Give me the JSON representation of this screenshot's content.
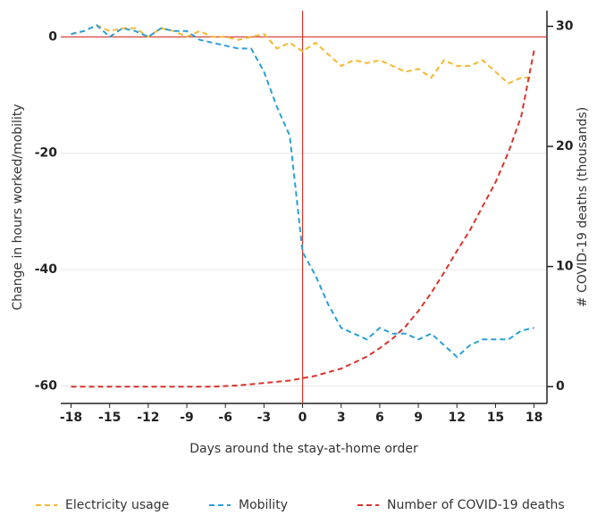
{
  "chart_data": {
    "type": "line",
    "x_label": "Days around the stay-at-home order",
    "y_label": "Change in hours worked/mobility",
    "y2_label": "# COVID-19 deaths (thousands)",
    "x": [
      -18,
      -17,
      -16,
      -15,
      -14,
      -13,
      -12,
      -11,
      -10,
      -9,
      -8,
      -7,
      -6,
      -5,
      -4,
      -3,
      -2,
      -1,
      0,
      1,
      2,
      3,
      4,
      5,
      6,
      7,
      8,
      9,
      10,
      11,
      12,
      13,
      14,
      15,
      16,
      17,
      18
    ],
    "series": [
      {
        "name": "Electricity usage",
        "color": "#f5b82e",
        "axis": "y",
        "values": [
          0.5,
          1,
          2,
          1,
          1.5,
          1.5,
          0,
          1.5,
          1,
          0,
          1,
          0,
          0,
          -0.5,
          0,
          0.5,
          -2,
          -1,
          -2.5,
          -1,
          -3,
          -5,
          -4,
          -4.5,
          -4,
          -5,
          -6,
          -5.5,
          -7,
          -4,
          -5,
          -5,
          -4,
          -6,
          -8,
          -7,
          -7
        ]
      },
      {
        "name": "Mobility",
        "color": "#2a9fd8",
        "axis": "y",
        "values": [
          0.5,
          1,
          2,
          0,
          1.5,
          1,
          0,
          1.5,
          1,
          1,
          -0.5,
          -1,
          -1.5,
          -2,
          -2,
          -6,
          -12,
          -17,
          -37,
          -41,
          -46,
          -50,
          -51,
          -52,
          -50,
          -51,
          -51,
          -52,
          -51,
          -53,
          -55,
          -53,
          -52,
          -52,
          -52,
          -50.5,
          -50
        ]
      },
      {
        "name": "Number of COVID-19 deaths",
        "color": "#d7342a",
        "axis": "y2",
        "values": [
          0,
          0,
          0,
          0,
          0,
          0,
          0,
          0,
          0,
          0,
          0,
          0,
          0.05,
          0.1,
          0.2,
          0.3,
          0.4,
          0.5,
          0.7,
          0.9,
          1.2,
          1.5,
          2,
          2.5,
          3.2,
          4,
          5,
          6.3,
          7.8,
          9.5,
          11.3,
          13,
          15,
          17,
          19.5,
          22.5,
          28
        ]
      }
    ],
    "xlim": [
      -18.8,
      19
    ],
    "xticks": [
      -18,
      -15,
      -12,
      -9,
      -6,
      -3,
      0,
      3,
      6,
      9,
      12,
      15,
      18
    ],
    "ylim": [
      -63,
      4.5
    ],
    "yticks": [
      0,
      -20,
      -40,
      -60
    ],
    "y2lim": [
      -1.4,
      31.3
    ],
    "y2ticks": [
      0,
      10,
      20,
      30
    ],
    "reference_x": 0,
    "reference_y": 0,
    "reference_color": "#d7342a",
    "grid": true
  }
}
